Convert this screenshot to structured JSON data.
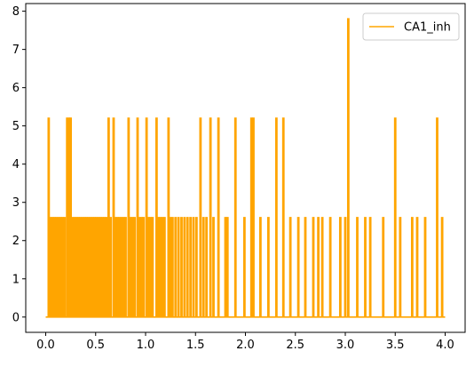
{
  "chart_data": {
    "type": "line",
    "title": "",
    "xlabel": "",
    "ylabel": "",
    "xlim": [
      -0.2,
      4.2
    ],
    "ylim": [
      -0.4,
      8.2
    ],
    "xticks": [
      0.0,
      0.5,
      1.0,
      1.5,
      2.0,
      2.5,
      3.0,
      3.5,
      4.0
    ],
    "xtick_labels": [
      "0.0",
      "0.5",
      "1.0",
      "1.5",
      "2.0",
      "2.5",
      "3.0",
      "3.5",
      "4.0"
    ],
    "yticks": [
      0,
      1,
      2,
      3,
      4,
      5,
      6,
      7,
      8
    ],
    "ytick_labels": [
      "0",
      "1",
      "2",
      "3",
      "4",
      "5",
      "6",
      "7",
      "8"
    ],
    "grid": false,
    "legend_position": "top-right",
    "series": [
      {
        "name": "CA1_inh",
        "color": "#ffa500",
        "baseline": 0,
        "x_range": [
          0.0,
          4.0
        ],
        "peaks": [
          {
            "x": 0.03,
            "y": 5.2
          },
          {
            "x": 0.05,
            "y": 2.6
          },
          {
            "x": 0.07,
            "y": 2.6
          },
          {
            "x": 0.09,
            "y": 2.6
          },
          {
            "x": 0.11,
            "y": 2.6
          },
          {
            "x": 0.13,
            "y": 2.6
          },
          {
            "x": 0.15,
            "y": 2.6
          },
          {
            "x": 0.17,
            "y": 2.6
          },
          {
            "x": 0.19,
            "y": 2.6
          },
          {
            "x": 0.215,
            "y": 5.2
          },
          {
            "x": 0.235,
            "y": 5.2
          },
          {
            "x": 0.25,
            "y": 5.2
          },
          {
            "x": 0.27,
            "y": 2.6
          },
          {
            "x": 0.29,
            "y": 2.6
          },
          {
            "x": 0.31,
            "y": 2.6
          },
          {
            "x": 0.33,
            "y": 2.6
          },
          {
            "x": 0.35,
            "y": 2.6
          },
          {
            "x": 0.37,
            "y": 2.6
          },
          {
            "x": 0.39,
            "y": 2.6
          },
          {
            "x": 0.41,
            "y": 2.6
          },
          {
            "x": 0.43,
            "y": 2.6
          },
          {
            "x": 0.45,
            "y": 2.6
          },
          {
            "x": 0.47,
            "y": 2.6
          },
          {
            "x": 0.49,
            "y": 2.6
          },
          {
            "x": 0.51,
            "y": 2.6
          },
          {
            "x": 0.53,
            "y": 2.6
          },
          {
            "x": 0.55,
            "y": 2.6
          },
          {
            "x": 0.57,
            "y": 2.6
          },
          {
            "x": 0.59,
            "y": 2.6
          },
          {
            "x": 0.61,
            "y": 2.6
          },
          {
            "x": 0.63,
            "y": 5.2
          },
          {
            "x": 0.65,
            "y": 2.6
          },
          {
            "x": 0.68,
            "y": 5.2
          },
          {
            "x": 0.7,
            "y": 2.6
          },
          {
            "x": 0.72,
            "y": 2.6
          },
          {
            "x": 0.74,
            "y": 2.6
          },
          {
            "x": 0.76,
            "y": 2.6
          },
          {
            "x": 0.78,
            "y": 2.6
          },
          {
            "x": 0.8,
            "y": 2.6
          },
          {
            "x": 0.83,
            "y": 5.2
          },
          {
            "x": 0.85,
            "y": 2.6
          },
          {
            "x": 0.87,
            "y": 2.6
          },
          {
            "x": 0.89,
            "y": 2.6
          },
          {
            "x": 0.92,
            "y": 5.2
          },
          {
            "x": 0.94,
            "y": 2.6
          },
          {
            "x": 0.96,
            "y": 2.6
          },
          {
            "x": 0.98,
            "y": 2.6
          },
          {
            "x": 1.01,
            "y": 5.2
          },
          {
            "x": 1.03,
            "y": 2.6
          },
          {
            "x": 1.05,
            "y": 2.6
          },
          {
            "x": 1.07,
            "y": 2.6
          },
          {
            "x": 1.11,
            "y": 5.2
          },
          {
            "x": 1.13,
            "y": 2.6
          },
          {
            "x": 1.15,
            "y": 2.6
          },
          {
            "x": 1.17,
            "y": 2.6
          },
          {
            "x": 1.19,
            "y": 2.6
          },
          {
            "x": 1.23,
            "y": 5.2
          },
          {
            "x": 1.25,
            "y": 2.6
          },
          {
            "x": 1.27,
            "y": 2.6
          },
          {
            "x": 1.3,
            "y": 2.6
          },
          {
            "x": 1.33,
            "y": 2.6
          },
          {
            "x": 1.36,
            "y": 2.6
          },
          {
            "x": 1.39,
            "y": 2.6
          },
          {
            "x": 1.42,
            "y": 2.6
          },
          {
            "x": 1.45,
            "y": 2.6
          },
          {
            "x": 1.48,
            "y": 2.6
          },
          {
            "x": 1.51,
            "y": 2.6
          },
          {
            "x": 1.55,
            "y": 5.2
          },
          {
            "x": 1.58,
            "y": 2.6
          },
          {
            "x": 1.61,
            "y": 2.6
          },
          {
            "x": 1.65,
            "y": 5.2
          },
          {
            "x": 1.68,
            "y": 2.6
          },
          {
            "x": 1.73,
            "y": 5.2
          },
          {
            "x": 1.8,
            "y": 2.6
          },
          {
            "x": 1.82,
            "y": 2.6
          },
          {
            "x": 1.9,
            "y": 5.2
          },
          {
            "x": 1.99,
            "y": 2.6
          },
          {
            "x": 2.06,
            "y": 5.2
          },
          {
            "x": 2.08,
            "y": 5.2
          },
          {
            "x": 2.15,
            "y": 2.6
          },
          {
            "x": 2.23,
            "y": 2.6
          },
          {
            "x": 2.31,
            "y": 5.2
          },
          {
            "x": 2.38,
            "y": 5.2
          },
          {
            "x": 2.45,
            "y": 2.6
          },
          {
            "x": 2.53,
            "y": 2.6
          },
          {
            "x": 2.6,
            "y": 2.6
          },
          {
            "x": 2.68,
            "y": 2.6
          },
          {
            "x": 2.73,
            "y": 2.6
          },
          {
            "x": 2.77,
            "y": 2.6
          },
          {
            "x": 2.85,
            "y": 2.6
          },
          {
            "x": 2.95,
            "y": 2.6
          },
          {
            "x": 3.0,
            "y": 2.6
          },
          {
            "x": 3.03,
            "y": 7.8
          },
          {
            "x": 3.12,
            "y": 2.6
          },
          {
            "x": 3.2,
            "y": 2.6
          },
          {
            "x": 3.25,
            "y": 2.6
          },
          {
            "x": 3.38,
            "y": 2.6
          },
          {
            "x": 3.5,
            "y": 5.2
          },
          {
            "x": 3.55,
            "y": 2.6
          },
          {
            "x": 3.67,
            "y": 2.6
          },
          {
            "x": 3.72,
            "y": 2.6
          },
          {
            "x": 3.8,
            "y": 2.6
          },
          {
            "x": 3.92,
            "y": 5.2
          },
          {
            "x": 3.97,
            "y": 2.6
          }
        ]
      }
    ]
  }
}
